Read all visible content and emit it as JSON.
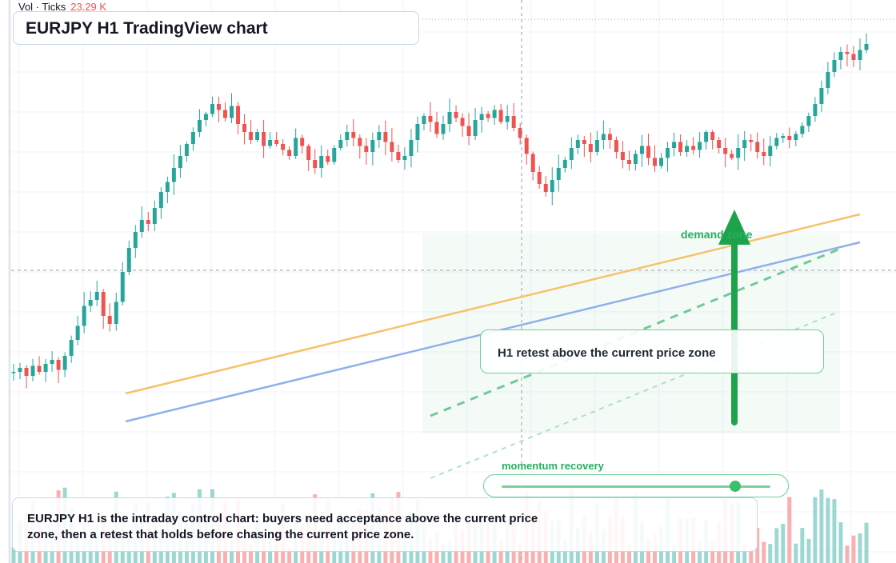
{
  "header": {
    "title": "EURJPY H1 TradingView chart",
    "volume_label": "Vol · Ticks",
    "volume_value": "23.29 K"
  },
  "annotations": {
    "zone_label": "demand zone",
    "callout": "H1 retest above the current price zone",
    "momentum_label": "momentum recovery",
    "momentum_level": 0.87,
    "note": "EURJPY H1 is the intraday control chart: buyers need acceptance above the current price zone, then a retest that holds before chasing the current price zone."
  },
  "colors": {
    "up": "#26a69a",
    "down": "#ef5350",
    "trend_orange": "#f5c26b",
    "trend_blue": "#8fb0ea",
    "accent_green": "#27ae60"
  },
  "chart_data": {
    "type": "candlestick",
    "symbol": "EURJPY",
    "timeframe": "H1",
    "y_range": [
      0,
      100
    ],
    "grid": true,
    "candles_count": 134,
    "start_open": 22,
    "path": [
      22,
      24,
      20,
      25,
      22,
      26,
      28,
      23,
      30,
      38,
      45,
      55,
      58,
      62,
      50,
      46,
      57,
      72,
      84,
      92,
      98,
      96,
      104,
      112,
      117,
      124,
      130,
      136,
      142,
      148,
      151,
      156,
      153,
      149,
      155,
      146,
      142,
      138,
      142,
      135,
      138,
      136,
      133,
      130,
      139,
      135,
      128,
      124,
      130,
      127,
      134,
      138,
      142,
      139,
      135,
      132,
      138,
      142,
      137,
      132,
      128,
      130,
      138,
      146,
      150,
      147,
      141,
      146,
      152,
      149,
      145,
      140,
      148,
      151,
      149,
      153,
      147,
      150,
      144,
      139,
      131,
      122,
      116,
      112,
      118,
      124,
      128,
      134,
      138,
      136,
      132,
      138,
      141,
      138,
      132,
      128,
      126,
      131,
      135,
      129,
      125,
      129,
      134,
      137,
      132,
      135,
      133,
      137,
      142,
      138,
      134,
      131,
      129,
      134,
      138,
      137,
      132,
      130,
      135,
      139,
      140,
      138,
      141,
      145,
      150,
      156,
      164,
      172,
      178,
      182,
      181,
      178,
      183,
      186
    ],
    "volume_range": [
      0,
      100
    ],
    "overlays": [
      {
        "kind": "trendline",
        "color": "orange"
      },
      {
        "kind": "trendline",
        "color": "blue"
      },
      {
        "kind": "zone",
        "label": "demand zone"
      },
      {
        "kind": "arrow",
        "direction": "up"
      }
    ]
  }
}
